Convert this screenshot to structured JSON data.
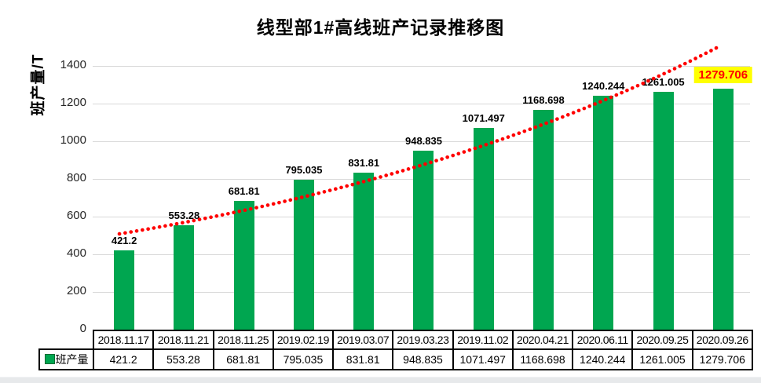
{
  "chart_data": {
    "type": "bar",
    "title": "线型部1#高线班产记录推移图",
    "ylabel": "班产量/T",
    "xlabel": "",
    "categories": [
      "2018.11.17",
      "2018.11.21",
      "2018.11.25",
      "2019.02.19",
      "2019.03.07",
      "2019.03.23",
      "2019.11.02",
      "2020.04.21",
      "2020.06.11",
      "2020.09.25",
      "2020.09.26"
    ],
    "series": [
      {
        "name": "班产量",
        "values": [
          421.2,
          553.28,
          681.81,
          795.035,
          831.81,
          948.835,
          1071.497,
          1168.698,
          1240.244,
          1261.005,
          1279.706
        ]
      }
    ],
    "ylim": [
      0,
      1400
    ],
    "y_ticks": [
      0,
      200,
      400,
      600,
      800,
      1000,
      1200,
      1400
    ],
    "grid": true,
    "grid_color": "#d9d9d9",
    "bar_color": "#00a650",
    "data_label_color": "#000000",
    "legend_position": "data-table-left",
    "legend_label": "班产量",
    "trendline": {
      "type": "exponential",
      "style": "dotted",
      "color": "#ff0000"
    },
    "last_value_highlight": {
      "value": 1279.706,
      "text_color": "#ff0000",
      "background": "#ffff00"
    }
  }
}
